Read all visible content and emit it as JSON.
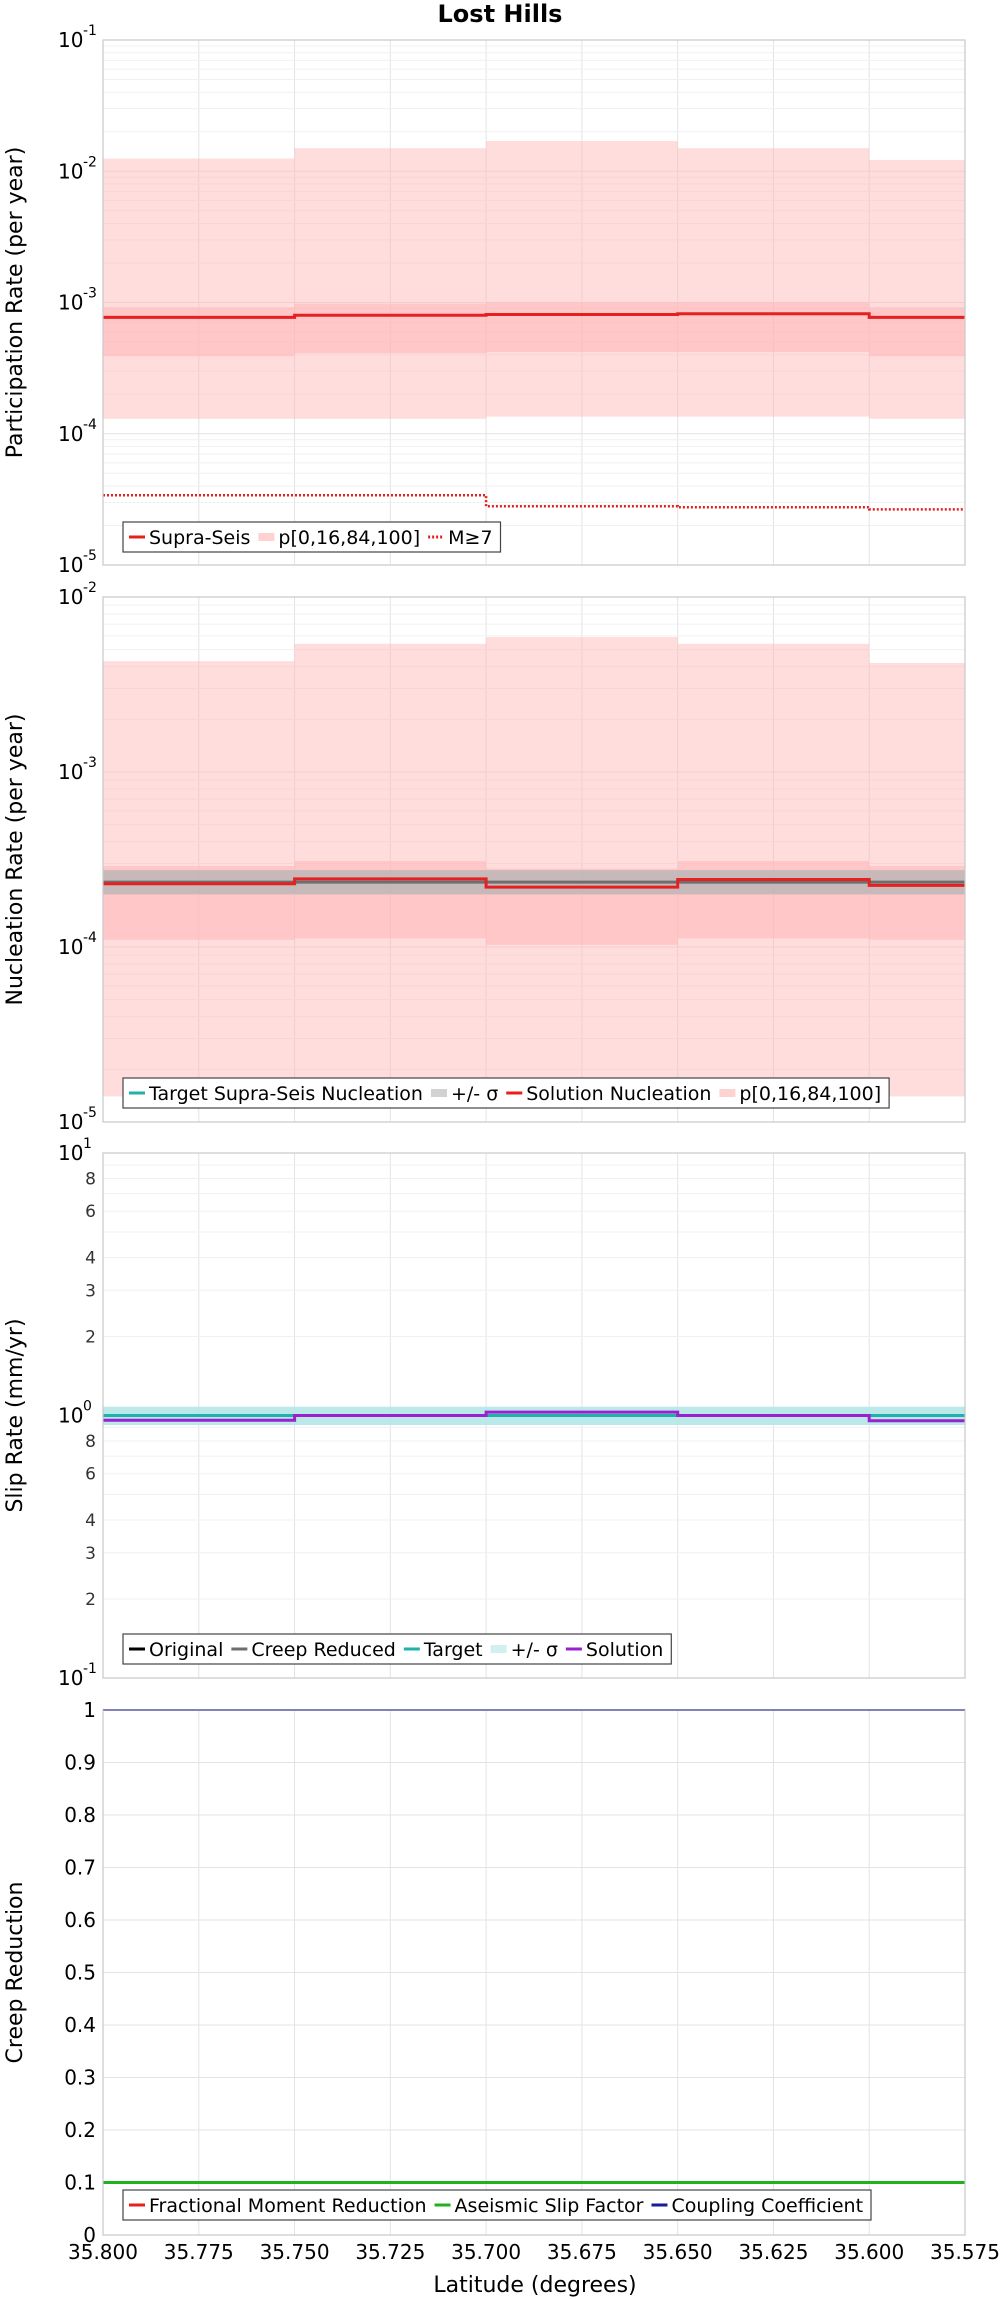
{
  "figure_title": "Lost Hills",
  "x_axis": {
    "label": "Latitude (degrees)",
    "range": [
      35.8,
      35.575
    ],
    "ticks": [
      "35.800",
      "35.775",
      "35.750",
      "35.725",
      "35.700",
      "35.675",
      "35.650",
      "35.625",
      "35.600",
      "35.575"
    ]
  },
  "colors": {
    "supra_seis": "#e62020",
    "percentile_band": "#ffb4b4",
    "target": "#20b2aa",
    "sigma_band": "#b4e6e6",
    "solution_slip": "#9b20d0",
    "creep_reduced": "#6e6e6e",
    "original": "#000000",
    "aseismic": "#20b020",
    "coupling": "#1a1a9a",
    "nucleation_sigma": "#b4b4b4"
  },
  "chart_data": [
    {
      "id": "participation",
      "type": "line",
      "title": "Lost Hills",
      "ylabel": "Participation Rate (per year)",
      "xlabel": "",
      "scale": "log",
      "ylim": [
        1e-05,
        0.1
      ],
      "major_ticks": [
        {
          "base": "10",
          "exp": "-5"
        },
        {
          "base": "10",
          "exp": "-4"
        },
        {
          "base": "10",
          "exp": "-3"
        },
        {
          "base": "10",
          "exp": "-2"
        },
        {
          "base": "10",
          "exp": "-1"
        }
      ],
      "bins": [
        [
          35.8,
          35.75
        ],
        [
          35.75,
          35.7
        ],
        [
          35.7,
          35.65
        ],
        [
          35.65,
          35.6
        ],
        [
          35.6,
          35.575
        ]
      ],
      "series": [
        {
          "name": "p[0,16,84,100] outer",
          "kind": "band",
          "lower": [
            0.00013,
            0.00013,
            0.000135,
            0.000135,
            0.00013
          ],
          "upper": [
            0.0125,
            0.015,
            0.017,
            0.015,
            0.0122
          ]
        },
        {
          "name": "p[0,16,84,100] inner",
          "kind": "band",
          "lower": [
            0.00039,
            0.00041,
            0.00042,
            0.00042,
            0.00039
          ],
          "upper": [
            0.00092,
            0.00098,
            0.001,
            0.001,
            0.00092
          ]
        },
        {
          "name": "Supra-Seis",
          "kind": "step",
          "values": [
            0.00077,
            0.0008,
            0.00081,
            0.00082,
            0.00077
          ]
        },
        {
          "name": "M≥7",
          "kind": "dotted-step",
          "values": [
            3.4e-05,
            3.4e-05,
            2.8e-05,
            2.75e-05,
            2.65e-05
          ]
        }
      ],
      "legend": [
        "Supra-Seis",
        "p[0,16,84,100]",
        "M≥7"
      ]
    },
    {
      "id": "nucleation",
      "type": "line",
      "ylabel": "Nucleation Rate (per year)",
      "xlabel": "",
      "scale": "log",
      "ylim": [
        1e-05,
        0.01
      ],
      "major_ticks": [
        {
          "base": "10",
          "exp": "-5"
        },
        {
          "base": "10",
          "exp": "-4"
        },
        {
          "base": "10",
          "exp": "-3"
        },
        {
          "base": "10",
          "exp": "-2"
        }
      ],
      "bins": [
        [
          35.8,
          35.75
        ],
        [
          35.75,
          35.7
        ],
        [
          35.7,
          35.65
        ],
        [
          35.65,
          35.6
        ],
        [
          35.6,
          35.575
        ]
      ],
      "series": [
        {
          "name": "p[0,16,84,100] outer",
          "kind": "band",
          "lower": [
            1.4e-05,
            1.4e-05,
            1.4e-05,
            1.4e-05,
            1.4e-05
          ],
          "upper": [
            0.0043,
            0.0054,
            0.0059,
            0.0054,
            0.0042
          ]
        },
        {
          "name": "p[0,16,84,100] inner",
          "kind": "band",
          "lower": [
            0.00011,
            0.000112,
            0.000103,
            0.000112,
            0.00011
          ],
          "upper": [
            0.00029,
            0.00031,
            0.00028,
            0.00031,
            0.00029
          ]
        },
        {
          "name": "+/- σ",
          "kind": "band",
          "lower": [
            0.0002,
            0.0002,
            0.0002,
            0.0002,
            0.0002
          ],
          "upper": [
            0.000275,
            0.000275,
            0.000275,
            0.000275,
            0.000275
          ]
        },
        {
          "name": "Target Supra-Seis Nucleation",
          "kind": "step",
          "values": [
            0.000235,
            0.000235,
            0.000235,
            0.000235,
            0.000235
          ]
        },
        {
          "name": "Solution Nucleation",
          "kind": "step",
          "values": [
            0.00023,
            0.000245,
            0.00022,
            0.000243,
            0.000225
          ]
        }
      ],
      "legend": [
        "Target Supra-Seis Nucleation",
        "+/- σ",
        "Solution Nucleation",
        "p[0,16,84,100]"
      ]
    },
    {
      "id": "slip",
      "type": "line",
      "ylabel": "Slip Rate (mm/yr)",
      "xlabel": "",
      "scale": "log",
      "ylim": [
        0.1,
        10
      ],
      "major_ticks": [
        {
          "base": "10",
          "exp": "-1"
        },
        {
          "base": "10",
          "exp": "0"
        },
        {
          "base": "10",
          "exp": "1"
        }
      ],
      "minor_tick_labels": [
        "2",
        "3",
        "4",
        "6",
        "8",
        "2",
        "3",
        "4",
        "6",
        "8"
      ],
      "bins": [
        [
          35.8,
          35.75
        ],
        [
          35.75,
          35.7
        ],
        [
          35.7,
          35.65
        ],
        [
          35.65,
          35.6
        ],
        [
          35.6,
          35.575
        ]
      ],
      "series": [
        {
          "name": "+/- σ",
          "kind": "band",
          "lower": [
            0.92,
            0.92,
            0.92,
            0.92,
            0.92
          ],
          "upper": [
            1.08,
            1.08,
            1.08,
            1.08,
            1.08
          ]
        },
        {
          "name": "Target",
          "kind": "step",
          "values": [
            1.0,
            1.0,
            1.0,
            1.0,
            1.0
          ]
        },
        {
          "name": "Solution",
          "kind": "step",
          "values": [
            0.96,
            1.0,
            1.03,
            1.0,
            0.955
          ]
        }
      ],
      "legend": [
        "Original",
        "Creep Reduced",
        "Target",
        "+/- σ",
        "Solution"
      ]
    },
    {
      "id": "creep",
      "type": "line",
      "ylabel": "Creep Reduction",
      "xlabel": "Latitude (degrees)",
      "scale": "linear",
      "ylim": [
        0,
        1
      ],
      "y_tick_labels": [
        "0",
        "0.1",
        "0.2",
        "0.3",
        "0.4",
        "0.5",
        "0.6",
        "0.7",
        "0.8",
        "0.9",
        "1"
      ],
      "series": [
        {
          "name": "Coupling Coefficient",
          "kind": "line",
          "values": [
            1.0,
            1.0
          ]
        },
        {
          "name": "Aseismic Slip Factor",
          "kind": "line",
          "values": [
            0.1,
            0.1
          ]
        }
      ],
      "legend": [
        "Fractional Moment Reduction",
        "Aseismic Slip Factor",
        "Coupling Coefficient"
      ]
    }
  ]
}
